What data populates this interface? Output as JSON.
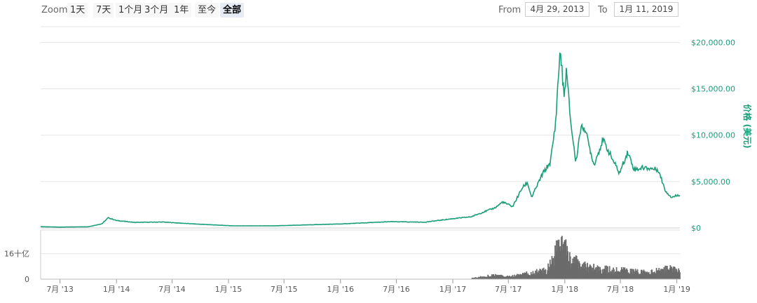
{
  "toolbar": {
    "zoom_label": "Zoom",
    "zoom_buttons": [
      "1天",
      "7天",
      "1个月",
      "3个月",
      "1年",
      "至今",
      "全部"
    ],
    "active_zoom": "全部",
    "from_label": "From",
    "from_value": "4月 29, 2013",
    "to_label": "To",
    "to_value": "1月 11, 2019"
  },
  "colors": {
    "price_line": "#1a9e7a",
    "volume_bars": "#6b6b6b",
    "grid": "#e6e6e6"
  },
  "chart_data": [
    {
      "type": "line",
      "title": "",
      "ylabel": "价格 (美元)",
      "ylim": [
        0,
        22000
      ],
      "yticks": [
        0,
        5000,
        10000,
        15000,
        20000
      ],
      "ytick_labels": [
        "$0",
        "$5,000.00",
        "$10,000.00",
        "$15,000.00",
        "$20,000.00"
      ],
      "grid": true,
      "series": [
        {
          "x": [
            "2013-04-29",
            "2013-07-01",
            "2013-10-01",
            "2013-11-15",
            "2013-12-05",
            "2014-01-01",
            "2014-03-01",
            "2014-06-01",
            "2014-09-01",
            "2015-01-15",
            "2015-06-01",
            "2015-11-05",
            "2016-01-01",
            "2016-06-15",
            "2016-10-01",
            "2017-01-01",
            "2017-03-01",
            "2017-05-20",
            "2017-06-12",
            "2017-07-15",
            "2017-08-15",
            "2017-09-01",
            "2017-09-15",
            "2017-10-20",
            "2017-11-15",
            "2017-12-01",
            "2017-12-17",
            "2017-12-30",
            "2018-01-06",
            "2018-01-20",
            "2018-02-06",
            "2018-02-20",
            "2018-03-05",
            "2018-04-06",
            "2018-05-05",
            "2018-06-28",
            "2018-07-25",
            "2018-08-15",
            "2018-09-15",
            "2018-11-01",
            "2018-11-25",
            "2018-12-15",
            "2019-01-11"
          ],
          "values": [
            140,
            90,
            130,
            450,
            1100,
            800,
            600,
            640,
            450,
            230,
            230,
            380,
            430,
            680,
            620,
            1000,
            1200,
            2200,
            2800,
            2300,
            4300,
            4900,
            3300,
            5800,
            7100,
            11000,
            19300,
            14000,
            17000,
            11500,
            7000,
            10500,
            11000,
            6800,
            9500,
            5900,
            8200,
            6300,
            6500,
            6300,
            4000,
            3300,
            3600
          ]
        }
      ]
    },
    {
      "type": "bar",
      "title": "",
      "ylabel": "",
      "yticks": [
        0,
        16
      ],
      "ytick_labels": [
        "0",
        "16十亿"
      ],
      "ylim": [
        0,
        30
      ],
      "unit": "十亿",
      "series": [
        {
          "x": [
            "2013-04-29",
            "2017-03-01",
            "2017-05-15",
            "2017-07-01",
            "2017-09-01",
            "2017-11-01",
            "2017-12-20",
            "2018-01-10",
            "2018-02-15",
            "2018-04-01",
            "2018-06-01",
            "2018-08-01",
            "2018-10-01",
            "2018-12-01",
            "2019-01-11"
          ],
          "values": [
            0.1,
            0.6,
            2.5,
            1.5,
            3.5,
            5.5,
            24.5,
            14.0,
            9.0,
            7.0,
            5.5,
            5.0,
            4.0,
            6.5,
            5.0
          ]
        }
      ]
    }
  ],
  "xaxis": {
    "ticks": [
      "2013-07-01",
      "2014-01-01",
      "2014-07-01",
      "2015-01-01",
      "2015-07-01",
      "2016-01-01",
      "2016-07-01",
      "2017-01-01",
      "2017-07-01",
      "2018-01-01",
      "2018-07-01",
      "2019-01-01"
    ],
    "tick_labels": [
      "7月 '13",
      "1月 '14",
      "7月 '14",
      "1月 '15",
      "7月 '15",
      "1月 '16",
      "7月 '16",
      "1月 '17",
      "7月 '17",
      "1月 '18",
      "7月 '18",
      "1月 '19"
    ]
  }
}
